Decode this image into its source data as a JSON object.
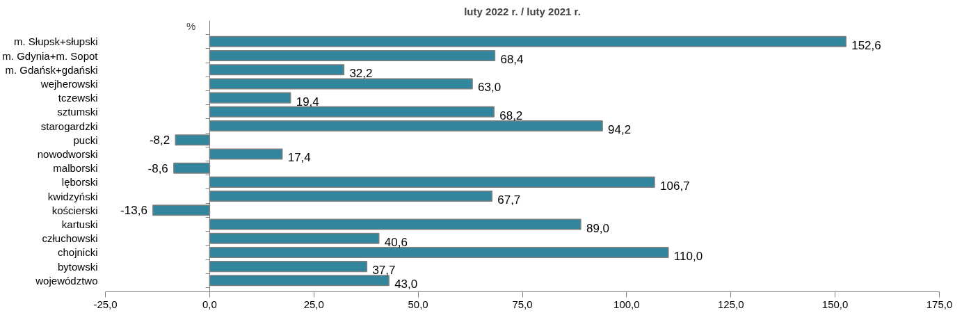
{
  "chart_data": {
    "type": "bar",
    "orientation": "horizontal",
    "title": "luty 2022 r. / luty 2021 r.",
    "annotations": [
      "%"
    ],
    "categories": [
      "m. Słupsk+słupski",
      "m. Gdynia+m. Sopot",
      "m. Gdańsk+gdański",
      "wejherowski",
      "tczewski",
      "sztumski",
      "starogardzki",
      "pucki",
      "nowodworski",
      "malborski",
      "lęborski",
      "kwidzyński",
      "kościerski",
      "kartuski",
      "człuchowski",
      "chojnicki",
      "bytowski",
      "województwo"
    ],
    "values": [
      152.6,
      68.4,
      32.2,
      63.0,
      19.4,
      68.2,
      94.2,
      -8.2,
      17.4,
      -8.6,
      106.7,
      67.7,
      -13.6,
      89.0,
      40.6,
      110.0,
      37.7,
      43.0
    ],
    "value_labels": [
      "152,6",
      "68,4",
      "32,2",
      "63,0",
      "19,4",
      "68,2",
      "94,2",
      "-8,2",
      "17,4",
      "-8,6",
      "106,7",
      "67,7",
      "-13,6",
      "89,0",
      "40,6",
      "110,0",
      "37,7",
      "43,0"
    ],
    "color": "#31859c",
    "xlim": [
      -25,
      175
    ],
    "xticks": [
      {
        "value": -25,
        "label": "-25,0"
      },
      {
        "value": 0,
        "label": "0,0"
      },
      {
        "value": 25,
        "label": "25,0"
      },
      {
        "value": 50,
        "label": "50,0"
      },
      {
        "value": 75,
        "label": "75,0"
      },
      {
        "value": 100,
        "label": "100,0"
      },
      {
        "value": 125,
        "label": "125,0"
      },
      {
        "value": 150,
        "label": "150,0"
      },
      {
        "value": 175,
        "label": "175,0"
      }
    ]
  }
}
